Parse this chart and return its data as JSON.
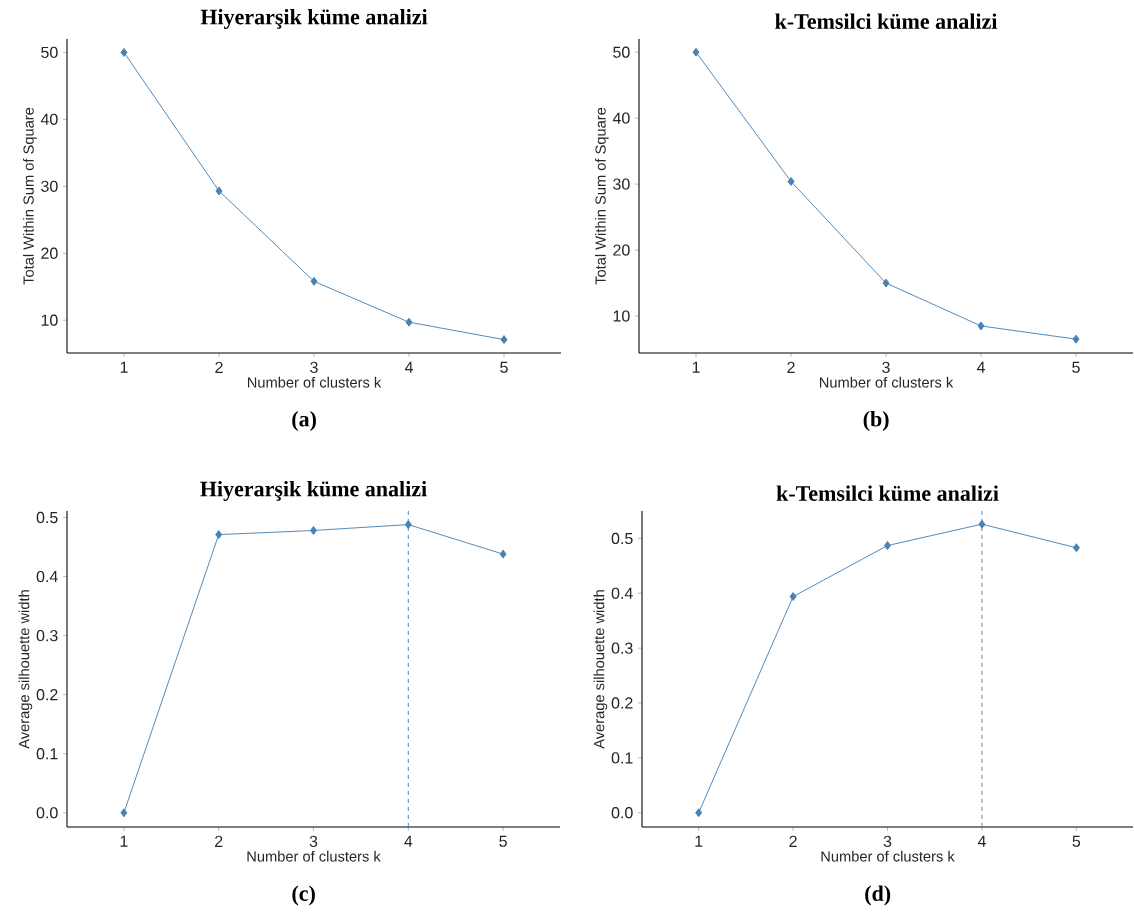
{
  "chart_data": [
    {
      "type": "line",
      "title": "Hiyerarşik küme analizi",
      "xlabel": "Number of clusters k",
      "ylabel": "Total Within Sum of Square",
      "x": [
        1,
        2,
        3,
        4,
        5
      ],
      "values": [
        50.0,
        29.3,
        15.8,
        9.7,
        7.1
      ],
      "color": "#4682b4",
      "marker": "diamond",
      "line_style": "solid",
      "xlim": [
        0.4,
        5.6
      ],
      "xticks": [
        1,
        2,
        3,
        4,
        5
      ],
      "ylim": [
        5.1,
        52.0
      ],
      "yticks": [
        10,
        20,
        30,
        40,
        50
      ],
      "grid": false,
      "annotations": [
        "(a)"
      ]
    },
    {
      "type": "line",
      "title": "k-Temsilci küme analizi",
      "xlabel": "Number of clusters k",
      "ylabel": "Total Within Sum of Square",
      "x": [
        1,
        2,
        3,
        4,
        5
      ],
      "values": [
        50.0,
        30.4,
        15.0,
        8.5,
        6.5
      ],
      "color": "#4682b4",
      "marker": "diamond",
      "line_style": "solid",
      "xlim": [
        0.4,
        5.6
      ],
      "xticks": [
        1,
        2,
        3,
        4,
        5
      ],
      "ylim": [
        4.4,
        52.0
      ],
      "yticks": [
        10,
        20,
        30,
        40,
        50
      ],
      "grid": false,
      "annotations": [
        "(b)"
      ]
    },
    {
      "type": "line",
      "title": "Hiyerarşik küme analizi",
      "xlabel": "Number of clusters k",
      "ylabel": "Average silhouette width",
      "x": [
        1,
        2,
        3,
        4,
        5
      ],
      "values": [
        0.0,
        0.471,
        0.478,
        0.488,
        0.438
      ],
      "color": "#4682b4",
      "marker": "diamond",
      "line_style": "solid",
      "xlim": [
        0.4,
        5.6
      ],
      "xticks": [
        1,
        2,
        3,
        4,
        5
      ],
      "ylim": [
        -0.024,
        0.511
      ],
      "yticks": [
        {
          "value": 0,
          "label": "0.0"
        },
        0.1,
        0.2,
        0.3,
        0.4,
        0.5
      ],
      "grid": false,
      "ref_lines": [
        {
          "axis": "x",
          "value": 4,
          "color": "#4682b4",
          "line_style": "dashed"
        }
      ],
      "annotations": [
        "(c)"
      ]
    },
    {
      "type": "line",
      "title": "k-Temsilci küme analizi",
      "xlabel": "Number of clusters k",
      "ylabel": "Average silhouette width",
      "x": [
        1,
        2,
        3,
        4,
        5
      ],
      "values": [
        0.0,
        0.394,
        0.487,
        0.526,
        0.483
      ],
      "color": "#4682b4",
      "marker": "diamond",
      "line_style": "solid",
      "xlim": [
        0.4,
        5.6
      ],
      "xticks": [
        1,
        2,
        3,
        4,
        5
      ],
      "ylim": [
        -0.026,
        0.55
      ],
      "yticks": [
        {
          "value": 0,
          "label": "0.0"
        },
        0.1,
        0.2,
        0.3,
        0.4,
        0.5
      ],
      "grid": false,
      "ref_lines": [
        {
          "axis": "x",
          "value": 4,
          "color": "#4682b4",
          "line_style": "dashed"
        }
      ],
      "annotations": [
        "(d)"
      ]
    }
  ]
}
